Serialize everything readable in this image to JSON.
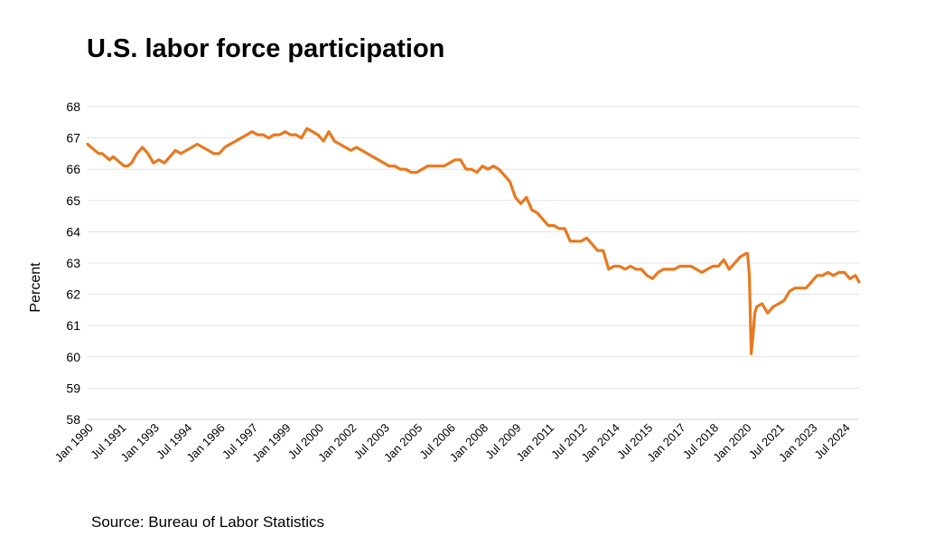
{
  "source": "Source: Bureau of Labor Statistics",
  "chart_data": {
    "type": "line",
    "title": "U.S. labor force participation",
    "xlabel": "",
    "ylabel": "Percent",
    "ylim": [
      58,
      68
    ],
    "yticks": [
      58,
      59,
      60,
      61,
      62,
      63,
      64,
      65,
      66,
      67,
      68
    ],
    "xlim": [
      "1990-01",
      "2025-03"
    ],
    "xticks": [
      "Jan 1990",
      "Jul 1991",
      "Jan 1993",
      "Jul 1994",
      "Jan 1996",
      "Jul 1997",
      "Jan 1999",
      "Jul 2000",
      "Jan 2002",
      "Jul 2003",
      "Jan 2005",
      "Jul 2006",
      "Jan 2008",
      "Jul 2009",
      "Jan 2011",
      "Jul 2012",
      "Jan 2014",
      "Jul 2015",
      "Jan 2017",
      "Jul 2018",
      "Jan 2020",
      "Jul 2021",
      "Jan 2023",
      "Jul 2024"
    ],
    "grid": "horizontal",
    "line_color": "#E8791F",
    "series": [
      {
        "name": "",
        "points": [
          [
            "1990-01",
            66.8
          ],
          [
            "1990-03",
            66.7
          ],
          [
            "1990-05",
            66.6
          ],
          [
            "1990-07",
            66.5
          ],
          [
            "1990-09",
            66.5
          ],
          [
            "1990-11",
            66.4
          ],
          [
            "1991-01",
            66.3
          ],
          [
            "1991-03",
            66.4
          ],
          [
            "1991-05",
            66.3
          ],
          [
            "1991-07",
            66.2
          ],
          [
            "1991-09",
            66.1
          ],
          [
            "1991-11",
            66.1
          ],
          [
            "1992-01",
            66.2
          ],
          [
            "1992-04",
            66.5
          ],
          [
            "1992-07",
            66.7
          ],
          [
            "1992-10",
            66.5
          ],
          [
            "1993-01",
            66.2
          ],
          [
            "1993-04",
            66.3
          ],
          [
            "1993-07",
            66.2
          ],
          [
            "1993-10",
            66.4
          ],
          [
            "1994-01",
            66.6
          ],
          [
            "1994-04",
            66.5
          ],
          [
            "1994-07",
            66.6
          ],
          [
            "1994-10",
            66.7
          ],
          [
            "1995-01",
            66.8
          ],
          [
            "1995-04",
            66.7
          ],
          [
            "1995-07",
            66.6
          ],
          [
            "1995-10",
            66.5
          ],
          [
            "1996-01",
            66.5
          ],
          [
            "1996-04",
            66.7
          ],
          [
            "1996-07",
            66.8
          ],
          [
            "1996-10",
            66.9
          ],
          [
            "1997-01",
            67.0
          ],
          [
            "1997-04",
            67.1
          ],
          [
            "1997-07",
            67.2
          ],
          [
            "1997-10",
            67.1
          ],
          [
            "1998-01",
            67.1
          ],
          [
            "1998-04",
            67.0
          ],
          [
            "1998-07",
            67.1
          ],
          [
            "1998-10",
            67.1
          ],
          [
            "1999-01",
            67.2
          ],
          [
            "1999-04",
            67.1
          ],
          [
            "1999-07",
            67.1
          ],
          [
            "1999-10",
            67.0
          ],
          [
            "2000-01",
            67.3
          ],
          [
            "2000-04",
            67.2
          ],
          [
            "2000-07",
            67.1
          ],
          [
            "2000-10",
            66.9
          ],
          [
            "2001-01",
            67.2
          ],
          [
            "2001-04",
            66.9
          ],
          [
            "2001-07",
            66.8
          ],
          [
            "2001-10",
            66.7
          ],
          [
            "2002-01",
            66.6
          ],
          [
            "2002-04",
            66.7
          ],
          [
            "2002-07",
            66.6
          ],
          [
            "2002-10",
            66.5
          ],
          [
            "2003-01",
            66.4
          ],
          [
            "2003-04",
            66.3
          ],
          [
            "2003-07",
            66.2
          ],
          [
            "2003-10",
            66.1
          ],
          [
            "2004-01",
            66.1
          ],
          [
            "2004-04",
            66.0
          ],
          [
            "2004-07",
            66.0
          ],
          [
            "2004-10",
            65.9
          ],
          [
            "2005-01",
            65.9
          ],
          [
            "2005-04",
            66.0
          ],
          [
            "2005-07",
            66.1
          ],
          [
            "2005-10",
            66.1
          ],
          [
            "2006-01",
            66.1
          ],
          [
            "2006-04",
            66.1
          ],
          [
            "2006-07",
            66.2
          ],
          [
            "2006-10",
            66.3
          ],
          [
            "2007-01",
            66.3
          ],
          [
            "2007-04",
            66.0
          ],
          [
            "2007-07",
            66.0
          ],
          [
            "2007-10",
            65.9
          ],
          [
            "2008-01",
            66.1
          ],
          [
            "2008-04",
            66.0
          ],
          [
            "2008-07",
            66.1
          ],
          [
            "2008-10",
            66.0
          ],
          [
            "2009-01",
            65.8
          ],
          [
            "2009-04",
            65.6
          ],
          [
            "2009-07",
            65.1
          ],
          [
            "2009-10",
            64.9
          ],
          [
            "2010-01",
            65.1
          ],
          [
            "2010-04",
            64.7
          ],
          [
            "2010-07",
            64.6
          ],
          [
            "2010-10",
            64.4
          ],
          [
            "2011-01",
            64.2
          ],
          [
            "2011-04",
            64.2
          ],
          [
            "2011-07",
            64.1
          ],
          [
            "2011-10",
            64.1
          ],
          [
            "2012-01",
            63.7
          ],
          [
            "2012-04",
            63.7
          ],
          [
            "2012-07",
            63.7
          ],
          [
            "2012-10",
            63.8
          ],
          [
            "2013-01",
            63.6
          ],
          [
            "2013-04",
            63.4
          ],
          [
            "2013-07",
            63.4
          ],
          [
            "2013-10",
            62.8
          ],
          [
            "2014-01",
            62.9
          ],
          [
            "2014-04",
            62.9
          ],
          [
            "2014-07",
            62.8
          ],
          [
            "2014-10",
            62.9
          ],
          [
            "2015-01",
            62.8
          ],
          [
            "2015-04",
            62.8
          ],
          [
            "2015-07",
            62.6
          ],
          [
            "2015-10",
            62.5
          ],
          [
            "2016-01",
            62.7
          ],
          [
            "2016-04",
            62.8
          ],
          [
            "2016-07",
            62.8
          ],
          [
            "2016-10",
            62.8
          ],
          [
            "2017-01",
            62.9
          ],
          [
            "2017-04",
            62.9
          ],
          [
            "2017-07",
            62.9
          ],
          [
            "2017-10",
            62.8
          ],
          [
            "2018-01",
            62.7
          ],
          [
            "2018-04",
            62.8
          ],
          [
            "2018-07",
            62.9
          ],
          [
            "2018-10",
            62.9
          ],
          [
            "2019-01",
            63.1
          ],
          [
            "2019-04",
            62.8
          ],
          [
            "2019-07",
            63.0
          ],
          [
            "2019-10",
            63.2
          ],
          [
            "2020-01",
            63.3
          ],
          [
            "2020-02",
            63.3
          ],
          [
            "2020-03",
            62.6
          ],
          [
            "2020-04",
            60.1
          ],
          [
            "2020-05",
            60.7
          ],
          [
            "2020-06",
            61.4
          ],
          [
            "2020-07",
            61.6
          ],
          [
            "2020-10",
            61.7
          ],
          [
            "2021-01",
            61.4
          ],
          [
            "2021-04",
            61.6
          ],
          [
            "2021-07",
            61.7
          ],
          [
            "2021-10",
            61.8
          ],
          [
            "2022-01",
            62.1
          ],
          [
            "2022-04",
            62.2
          ],
          [
            "2022-07",
            62.2
          ],
          [
            "2022-10",
            62.2
          ],
          [
            "2023-01",
            62.4
          ],
          [
            "2023-04",
            62.6
          ],
          [
            "2023-07",
            62.6
          ],
          [
            "2023-10",
            62.7
          ],
          [
            "2024-01",
            62.6
          ],
          [
            "2024-04",
            62.7
          ],
          [
            "2024-07",
            62.7
          ],
          [
            "2024-10",
            62.5
          ],
          [
            "2025-01",
            62.6
          ],
          [
            "2025-03",
            62.4
          ]
        ]
      }
    ]
  }
}
